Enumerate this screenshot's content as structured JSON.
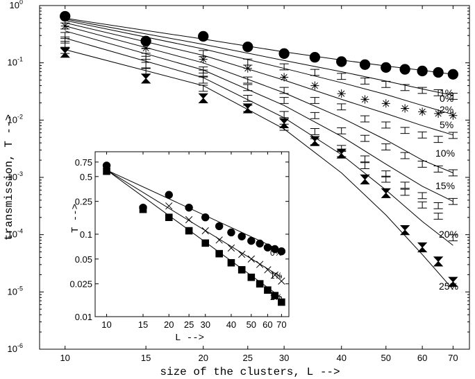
{
  "chart_data": [
    {
      "type": "scatter",
      "title": "",
      "xlabel": "size of the clusters, L -->",
      "ylabel": "transmission, T -->",
      "xscale": "log",
      "yscale": "log",
      "xlim": [
        8.8,
        76
      ],
      "ylim": [
        1e-06,
        1
      ],
      "x_ticks": [
        10,
        15,
        20,
        25,
        30,
        40,
        50,
        60,
        70
      ],
      "y_ticks": [
        {
          "base": "10",
          "exp": "0",
          "value": 1
        },
        {
          "base": "10",
          "exp": "-1",
          "value": 0.1
        },
        {
          "base": "10",
          "exp": "-2",
          "value": 0.01
        },
        {
          "base": "10",
          "exp": "-3",
          "value": 0.001
        },
        {
          "base": "10",
          "exp": "-4",
          "value": 0.0001
        },
        {
          "base": "10",
          "exp": "-5",
          "value": 1e-05
        },
        {
          "base": "10",
          "exp": "-6",
          "value": 1e-06
        }
      ],
      "series": [
        {
          "name": "0%",
          "marker": "circle",
          "points": [
            [
              10,
              0.65
            ],
            [
              15,
              0.24
            ],
            [
              20,
              0.29
            ],
            [
              25,
              0.19
            ],
            [
              30,
              0.145
            ],
            [
              35,
              0.125
            ],
            [
              40,
              0.105
            ],
            [
              45,
              0.093
            ],
            [
              50,
              0.083
            ],
            [
              55,
              0.077
            ],
            [
              60,
              0.072
            ],
            [
              65,
              0.068
            ],
            [
              70,
              0.063
            ]
          ],
          "fit": [
            [
              10,
              0.6
            ],
            [
              20,
              0.26
            ],
            [
              30,
              0.155
            ],
            [
              40,
              0.112
            ],
            [
              50,
              0.088
            ],
            [
              60,
              0.074
            ],
            [
              70,
              0.063
            ]
          ]
        },
        {
          "name": "1%",
          "marker": "errorbar",
          "points": [
            [
              10,
              0.44
            ],
            [
              15,
              0.2
            ],
            [
              20,
              0.145
            ],
            [
              25,
              0.103
            ],
            [
              30,
              0.085
            ],
            [
              35,
              0.068
            ],
            [
              40,
              0.058
            ],
            [
              45,
              0.048
            ],
            [
              50,
              0.042
            ],
            [
              55,
              0.037
            ],
            [
              60,
              0.033
            ],
            [
              65,
              0.03
            ],
            [
              70,
              0.026
            ]
          ],
          "fit": [
            [
              10,
              0.58
            ],
            [
              20,
              0.21
            ],
            [
              30,
              0.11
            ],
            [
              40,
              0.07
            ],
            [
              50,
              0.048
            ],
            [
              60,
              0.035
            ],
            [
              70,
              0.027
            ]
          ]
        },
        {
          "name": "2%",
          "marker": "asterisk",
          "points": [
            [
              10,
              0.44
            ],
            [
              15,
              0.18
            ],
            [
              20,
              0.115
            ],
            [
              25,
              0.08
            ],
            [
              30,
              0.056
            ],
            [
              35,
              0.04
            ],
            [
              40,
              0.029
            ],
            [
              45,
              0.023
            ],
            [
              50,
              0.0195
            ],
            [
              55,
              0.016
            ],
            [
              60,
              0.014
            ],
            [
              65,
              0.013
            ],
            [
              70,
              0.012
            ]
          ],
          "fit": [
            [
              10,
              0.55
            ],
            [
              20,
              0.175
            ],
            [
              30,
              0.08
            ],
            [
              40,
              0.045
            ],
            [
              50,
              0.028
            ],
            [
              60,
              0.018
            ],
            [
              70,
              0.0125
            ]
          ]
        },
        {
          "name": "5%",
          "marker": "errorbar",
          "points": [
            [
              10,
              0.3
            ],
            [
              15,
              0.13
            ],
            [
              20,
              0.075
            ],
            [
              25,
              0.05
            ],
            [
              30,
              0.033
            ],
            [
              35,
              0.022
            ],
            [
              40,
              0.017
            ],
            [
              45,
              0.0105
            ],
            [
              50,
              0.0082
            ],
            [
              55,
              0.0066
            ],
            [
              60,
              0.0055
            ],
            [
              65,
              0.0046
            ],
            [
              70,
              0.0054
            ]
          ],
          "fit": [
            [
              10,
              0.5
            ],
            [
              20,
              0.135
            ],
            [
              30,
              0.05
            ],
            [
              40,
              0.023
            ],
            [
              50,
              0.013
            ],
            [
              60,
              0.008
            ],
            [
              70,
              0.0055
            ]
          ]
        },
        {
          "name": "10%",
          "marker": "errorbar",
          "points": [
            [
              10,
              0.25
            ],
            [
              15,
              0.115
            ],
            [
              20,
              0.066
            ],
            [
              25,
              0.037
            ],
            [
              30,
              0.022
            ],
            [
              35,
              0.012
            ],
            [
              40,
              0.0065
            ],
            [
              45,
              0.0048
            ],
            [
              50,
              0.0034
            ],
            [
              55,
              0.0024
            ],
            [
              60,
              0.0017
            ],
            [
              65,
              0.0014
            ],
            [
              70,
              0.0012
            ]
          ],
          "fit": [
            [
              10,
              0.44
            ],
            [
              20,
              0.1
            ],
            [
              30,
              0.03
            ],
            [
              40,
              0.011
            ],
            [
              50,
              0.0045
            ],
            [
              60,
              0.002
            ],
            [
              70,
              0.0012
            ]
          ]
        },
        {
          "name": "15%",
          "marker": "errorbar",
          "points": [
            [
              10,
              0.21
            ],
            [
              15,
              0.09
            ],
            [
              20,
              0.05
            ],
            [
              25,
              0.024
            ],
            [
              30,
              0.0125
            ],
            [
              35,
              0.0063
            ],
            [
              40,
              0.0032
            ],
            [
              45,
              0.0021
            ],
            [
              50,
              0.00115
            ],
            [
              55,
              0.00073
            ],
            [
              60,
              0.00048
            ],
            [
              65,
              0.00032
            ],
            [
              70,
              0.00038
            ]
          ],
          "fit": [
            [
              10,
              0.36
            ],
            [
              20,
              0.075
            ],
            [
              30,
              0.018
            ],
            [
              40,
              0.0052
            ],
            [
              50,
              0.0017
            ],
            [
              60,
              0.0007
            ],
            [
              70,
              0.00038
            ]
          ]
        },
        {
          "name": "20%",
          "marker": "errorbar",
          "points": [
            [
              10,
              0.165
            ],
            [
              15,
              0.072
            ],
            [
              20,
              0.036
            ],
            [
              25,
              0.016
            ],
            [
              30,
              0.0075
            ],
            [
              35,
              0.0042
            ],
            [
              40,
              0.0026
            ],
            [
              45,
              0.0016
            ],
            [
              50,
              0.00093
            ],
            [
              55,
              0.00055
            ],
            [
              60,
              0.00033
            ],
            [
              65,
              0.00021
            ],
            [
              70,
              8.8e-05
            ]
          ],
          "fit": [
            [
              10,
              0.27
            ],
            [
              20,
              0.055
            ],
            [
              30,
              0.011
            ],
            [
              40,
              0.0025
            ],
            [
              50,
              0.0006
            ],
            [
              60,
              0.00017
            ],
            [
              70,
              6.5e-05
            ]
          ]
        },
        {
          "name": "25%",
          "marker": "hourglass",
          "points": [
            [
              10,
              0.15
            ],
            [
              15,
              0.053
            ],
            [
              20,
              0.024
            ],
            [
              25,
              0.016
            ],
            [
              30,
              0.0088
            ],
            [
              35,
              0.0043
            ],
            [
              40,
              0.0026
            ],
            [
              45,
              0.00092
            ],
            [
              50,
              0.00053
            ],
            [
              55,
              0.00012
            ],
            [
              60,
              6e-05
            ],
            [
              65,
              3.4e-05
            ],
            [
              70,
              1.5e-05
            ]
          ],
          "fit": [
            [
              10,
              0.17
            ],
            [
              20,
              0.04
            ],
            [
              30,
              0.007
            ],
            [
              40,
              0.0012
            ],
            [
              50,
              0.00022
            ],
            [
              60,
              4.5e-05
            ],
            [
              70,
              1.1e-05
            ]
          ]
        }
      ]
    },
    {
      "type": "scatter",
      "title": "",
      "xlabel": "L -->",
      "ylabel": "T -->",
      "xscale": "log",
      "yscale": "log",
      "xlim": [
        8.8,
        76
      ],
      "ylim": [
        0.01,
        1
      ],
      "x_ticks": [
        10,
        15,
        20,
        25,
        30,
        40,
        50,
        60,
        70
      ],
      "y_ticks": [
        "0.75",
        "0.5",
        "0.25",
        "0.1",
        "0.05",
        "0.025",
        "0.01"
      ],
      "series": [
        {
          "name": "0%",
          "marker": "circle",
          "points": [
            [
              10,
              0.68
            ],
            [
              15,
              0.21
            ],
            [
              20,
              0.3
            ],
            [
              25,
              0.21
            ],
            [
              30,
              0.16
            ],
            [
              35,
              0.125
            ],
            [
              40,
              0.105
            ],
            [
              45,
              0.094
            ],
            [
              50,
              0.083
            ],
            [
              55,
              0.077
            ],
            [
              60,
              0.069
            ],
            [
              65,
              0.066
            ],
            [
              70,
              0.062
            ]
          ],
          "fit": [
            [
              10,
              0.6
            ],
            [
              70,
              0.063
            ]
          ]
        },
        {
          "name": "1%",
          "marker": "cross",
          "points": [
            [
              10,
              0.6
            ],
            [
              15,
              0.2
            ],
            [
              20,
              0.22
            ],
            [
              25,
              0.15
            ],
            [
              30,
              0.11
            ],
            [
              35,
              0.085
            ],
            [
              40,
              0.068
            ],
            [
              45,
              0.057
            ],
            [
              50,
              0.05
            ],
            [
              55,
              0.043
            ],
            [
              60,
              0.037
            ],
            [
              65,
              0.032
            ],
            [
              70,
              0.027
            ]
          ],
          "fit": [
            [
              10,
              0.6
            ],
            [
              70,
              0.03
            ]
          ]
        },
        {
          "name": "2%",
          "marker": "square",
          "points": [
            [
              10,
              0.58
            ],
            [
              15,
              0.2
            ],
            [
              20,
              0.16
            ],
            [
              25,
              0.11
            ],
            [
              30,
              0.078
            ],
            [
              35,
              0.058
            ],
            [
              40,
              0.045
            ],
            [
              45,
              0.037
            ],
            [
              50,
              0.03
            ],
            [
              55,
              0.025
            ],
            [
              60,
              0.021
            ],
            [
              65,
              0.018
            ],
            [
              70,
              0.015
            ]
          ],
          "fit": [
            [
              10,
              0.6
            ],
            [
              70,
              0.017
            ]
          ]
        }
      ],
      "legend": [
        "0%",
        "1%",
        "2%"
      ]
    }
  ],
  "main_series_labels": [
    "0%",
    "1%",
    "2%",
    "5%",
    "10%",
    "15%",
    "20%",
    "25%"
  ]
}
